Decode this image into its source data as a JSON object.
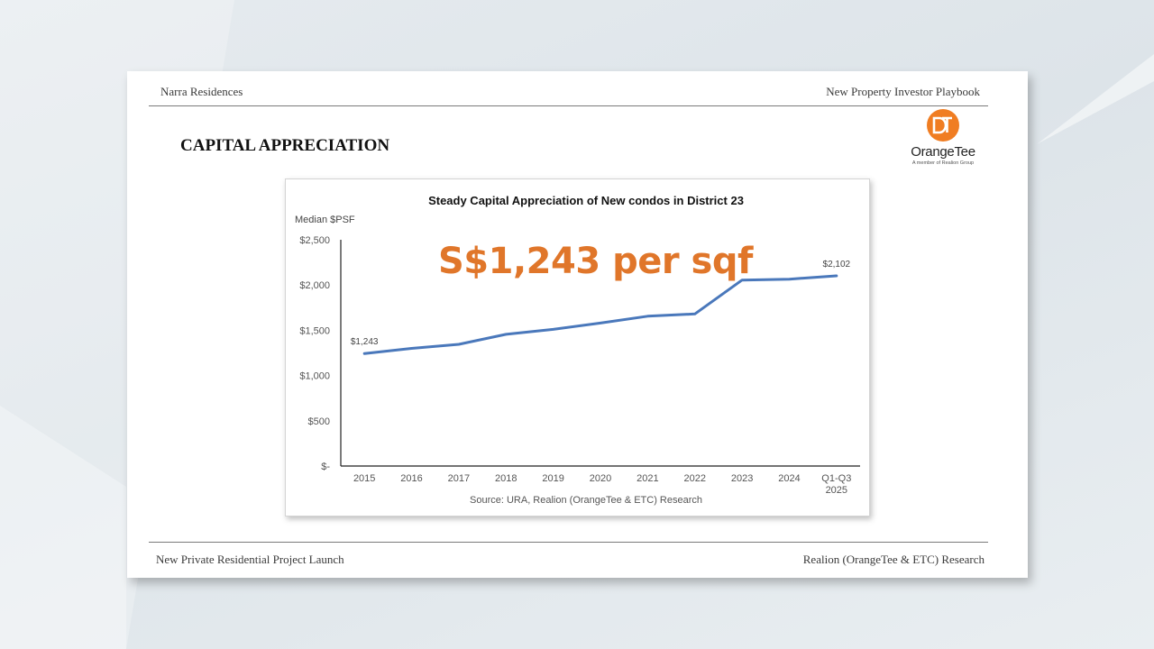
{
  "slide": {
    "header_left": "Narra Residences",
    "header_right": "New Property Investor Playbook",
    "title": "CAPITAL APPRECIATION",
    "footer_left": "New Private Residential Project Launch",
    "footer_right": "Realion (OrangeTee & ETC) Research"
  },
  "logo": {
    "name": "OrangeTee",
    "tagline": "A member of Realion Group",
    "monogram": "OT",
    "color": "#f07d22"
  },
  "overlay_text": "S$1,243 per sqf",
  "colors": {
    "line": "#4a78bb",
    "overlay": "#e0762a"
  },
  "chart_data": {
    "type": "line",
    "title": "Steady Capital Appreciation of New condos in District 23",
    "ylabel": "Median $PSF",
    "source": "Source: URA, Realion (OrangeTee & ETC) Research",
    "categories": [
      "2015",
      "2016",
      "2017",
      "2018",
      "2019",
      "2020",
      "2021",
      "2022",
      "2023",
      "2024",
      "Q1-Q3 2025"
    ],
    "values": [
      1243,
      1300,
      1345,
      1455,
      1510,
      1580,
      1655,
      1680,
      2055,
      2065,
      2102
    ],
    "data_labels": [
      {
        "index": 0,
        "text": "$1,243"
      },
      {
        "index": 10,
        "text": "$2,102"
      }
    ],
    "yticks": [
      {
        "value": 0,
        "label": "$-"
      },
      {
        "value": 500,
        "label": "$500"
      },
      {
        "value": 1000,
        "label": "$1,000"
      },
      {
        "value": 1500,
        "label": "$1,500"
      },
      {
        "value": 2000,
        "label": "$2,000"
      },
      {
        "value": 2500,
        "label": "$2,500"
      }
    ],
    "ylim": [
      0,
      2500
    ],
    "grid": false,
    "legend": "none"
  }
}
